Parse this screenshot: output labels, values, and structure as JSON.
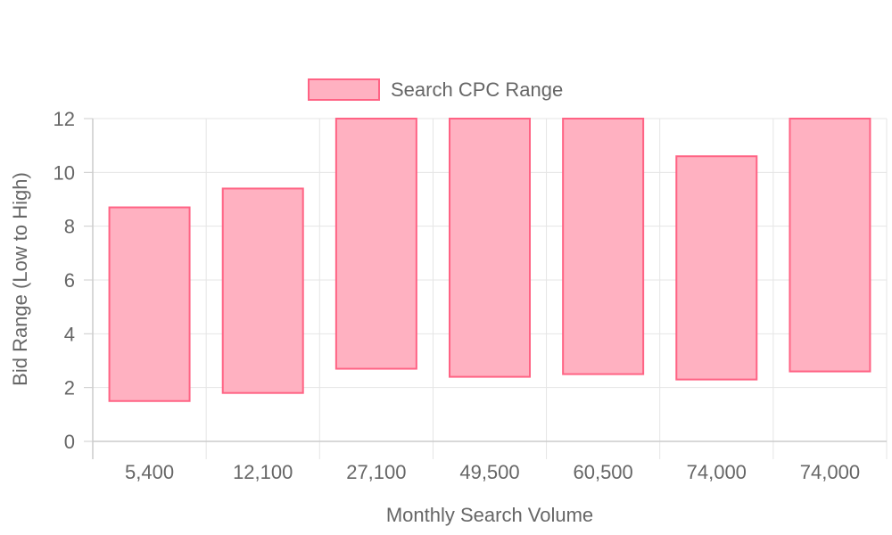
{
  "chart_data": {
    "type": "bar",
    "title": "",
    "xlabel": "Monthly Search Volume",
    "ylabel": "Bid Range (Low to High)",
    "ylim": [
      0,
      12
    ],
    "y_ticks": [
      "0",
      "2",
      "4",
      "6",
      "8",
      "10",
      "12"
    ],
    "grid": true,
    "legend_position": "top-center",
    "categories": [
      "5,400",
      "12,100",
      "27,100",
      "49,500",
      "60,500",
      "74,000",
      "74,000"
    ],
    "series": [
      {
        "name": "Search CPC Range",
        "low": [
          1.5,
          1.8,
          2.7,
          2.4,
          2.5,
          2.3,
          2.6
        ],
        "high": [
          8.7,
          9.4,
          12,
          12,
          12,
          10.6,
          12
        ],
        "fill_color": "#ffb1c1",
        "border_color": "#ff6384"
      }
    ]
  }
}
